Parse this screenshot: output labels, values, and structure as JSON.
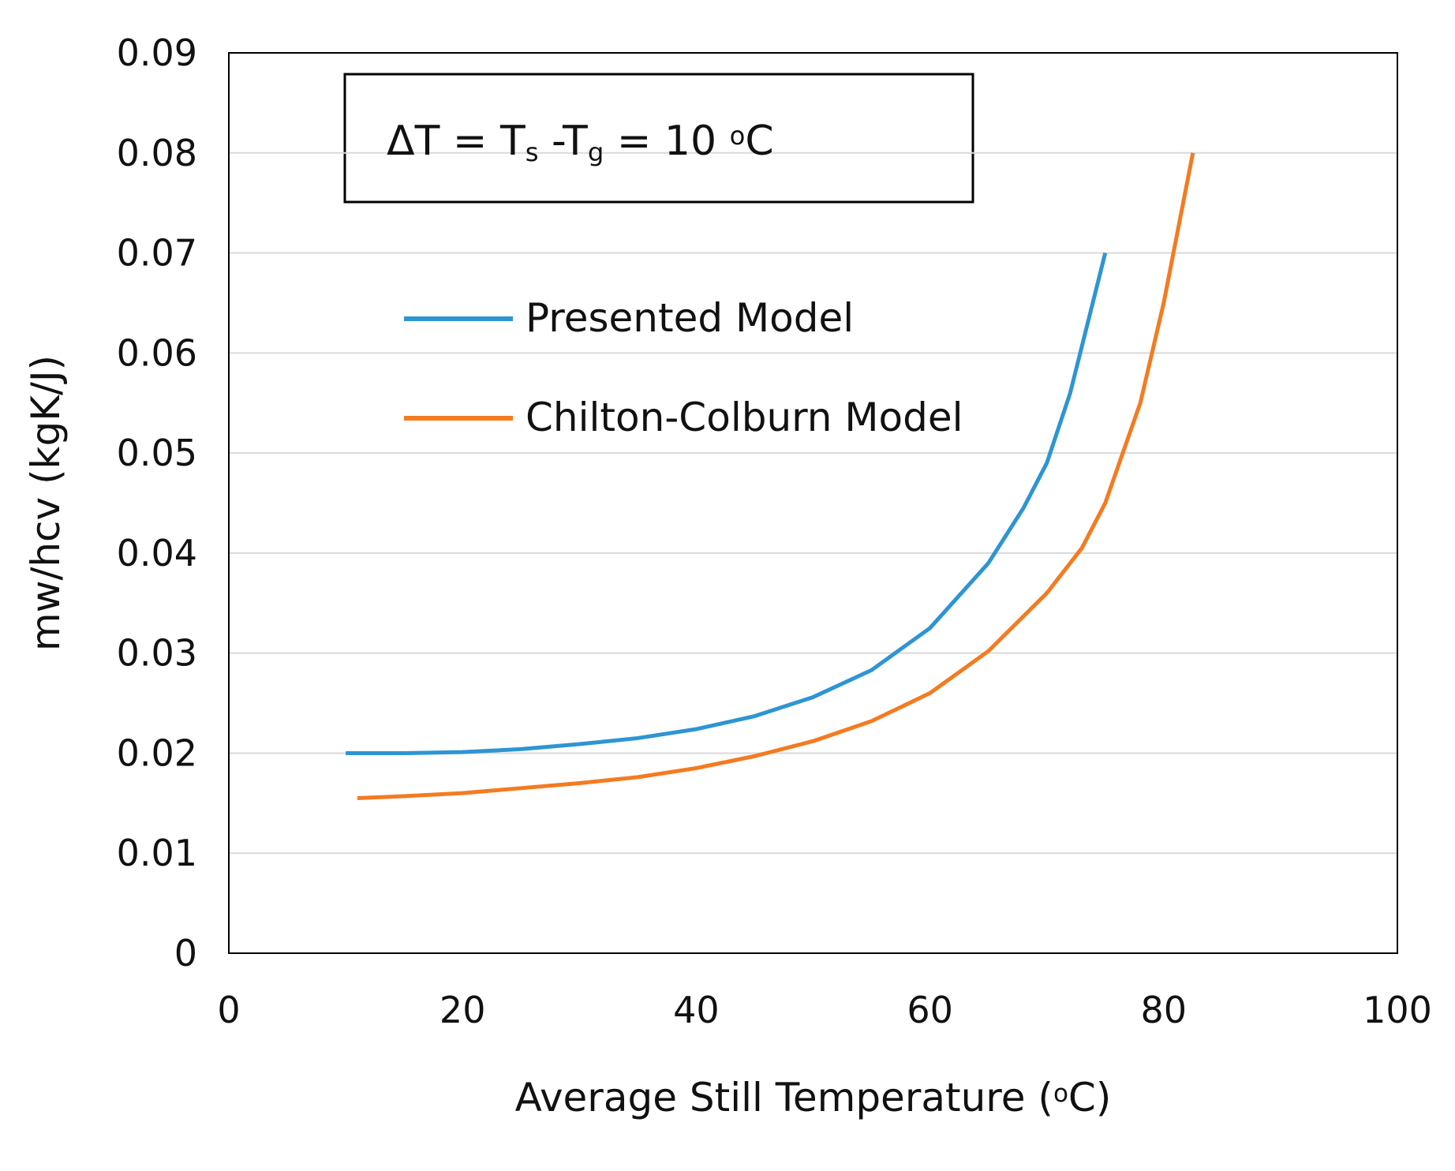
{
  "chart_data": {
    "type": "line",
    "y_label": "mw/hcv (kgK/J)",
    "x_label": [
      "Average Still Temperature (",
      "o",
      "C)"
    ],
    "annotation": [
      "ΔT = T",
      "s",
      " -T",
      "g",
      " = 10 ",
      "o",
      "C"
    ],
    "xlim": [
      0,
      100
    ],
    "xticks": [
      0,
      20,
      40,
      60,
      80,
      100
    ],
    "ylim": [
      0,
      0.09
    ],
    "yticks": [
      0,
      0.01,
      0.02,
      0.03,
      0.04,
      0.05,
      0.06,
      0.07,
      0.08,
      0.09
    ],
    "grid": true,
    "legend": "upper left",
    "series": [
      {
        "name": "Presented Model",
        "color": "#2e95d3",
        "x": [
          10,
          15,
          20,
          25,
          30,
          35,
          40,
          45,
          50,
          55,
          60,
          65,
          68,
          70,
          72,
          75
        ],
        "values": [
          0.02,
          0.02,
          0.0201,
          0.0204,
          0.0209,
          0.0215,
          0.0224,
          0.0237,
          0.0256,
          0.0283,
          0.0325,
          0.039,
          0.0445,
          0.049,
          0.056,
          0.07
        ]
      },
      {
        "name": "Chilton-Colburn Model",
        "color": "#f47b20",
        "x": [
          11,
          15,
          20,
          25,
          30,
          35,
          40,
          45,
          50,
          55,
          60,
          65,
          70,
          73,
          75,
          78,
          80,
          82.5
        ],
        "values": [
          0.0155,
          0.0157,
          0.016,
          0.0165,
          0.017,
          0.0176,
          0.0185,
          0.0197,
          0.0212,
          0.0232,
          0.026,
          0.0302,
          0.036,
          0.0405,
          0.045,
          0.055,
          0.065,
          0.08
        ]
      }
    ]
  }
}
